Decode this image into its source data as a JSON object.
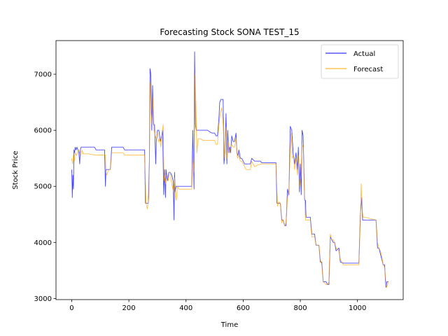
{
  "chart_data": {
    "type": "line",
    "title": "Forecasting Stock SONA TEST_15",
    "xlabel": "Time",
    "ylabel": "Stock Price",
    "xlim": [
      -55,
      1160
    ],
    "ylim": [
      2980,
      7600
    ],
    "xticks": [
      0,
      200,
      400,
      600,
      800,
      1000
    ],
    "yticks": [
      3000,
      4000,
      5000,
      6000,
      7000
    ],
    "grid": false,
    "legend_position": "top-right",
    "series": [
      {
        "name": "Actual",
        "color": "#0000ff",
        "points": [
          [
            0,
            5300
          ],
          [
            2,
            4800
          ],
          [
            4,
            5200
          ],
          [
            6,
            4950
          ],
          [
            8,
            5650
          ],
          [
            10,
            5600
          ],
          [
            12,
            5700
          ],
          [
            15,
            5650
          ],
          [
            18,
            5700
          ],
          [
            22,
            5650
          ],
          [
            25,
            5600
          ],
          [
            28,
            5400
          ],
          [
            30,
            5650
          ],
          [
            33,
            5700
          ],
          [
            60,
            5700
          ],
          [
            80,
            5700
          ],
          [
            85,
            5650
          ],
          [
            115,
            5650
          ],
          [
            118,
            5000
          ],
          [
            120,
            5300
          ],
          [
            130,
            5300
          ],
          [
            135,
            5300
          ],
          [
            140,
            5700
          ],
          [
            180,
            5700
          ],
          [
            185,
            5650
          ],
          [
            255,
            5650
          ],
          [
            258,
            4700
          ],
          [
            268,
            4700
          ],
          [
            272,
            5500
          ],
          [
            274,
            7100
          ],
          [
            277,
            7000
          ],
          [
            280,
            6000
          ],
          [
            283,
            6800
          ],
          [
            286,
            6100
          ],
          [
            290,
            6100
          ],
          [
            294,
            5400
          ],
          [
            296,
            5800
          ],
          [
            300,
            6000
          ],
          [
            305,
            6000
          ],
          [
            310,
            5800
          ],
          [
            315,
            5900
          ],
          [
            318,
            6000
          ],
          [
            322,
            4850
          ],
          [
            325,
            5300
          ],
          [
            328,
            4800
          ],
          [
            330,
            5300
          ],
          [
            335,
            5100
          ],
          [
            340,
            5250
          ],
          [
            345,
            5250
          ],
          [
            350,
            5200
          ],
          [
            355,
            5100
          ],
          [
            358,
            4400
          ],
          [
            360,
            5250
          ],
          [
            362,
            4900
          ],
          [
            365,
            5000
          ],
          [
            370,
            5000
          ],
          [
            375,
            5000
          ],
          [
            420,
            5000
          ],
          [
            424,
            6000
          ],
          [
            428,
            4950
          ],
          [
            430,
            7400
          ],
          [
            433,
            6100
          ],
          [
            436,
            6000
          ],
          [
            470,
            6000
          ],
          [
            475,
            6000
          ],
          [
            490,
            5950
          ],
          [
            500,
            5950
          ],
          [
            505,
            5900
          ],
          [
            510,
            5900
          ],
          [
            515,
            6200
          ],
          [
            518,
            6500
          ],
          [
            522,
            6550
          ],
          [
            530,
            6550
          ],
          [
            533,
            5400
          ],
          [
            536,
            5600
          ],
          [
            540,
            6300
          ],
          [
            543,
            5400
          ],
          [
            546,
            6000
          ],
          [
            550,
            5600
          ],
          [
            553,
            5700
          ],
          [
            556,
            5600
          ],
          [
            560,
            5900
          ],
          [
            565,
            5800
          ],
          [
            570,
            5800
          ],
          [
            575,
            5950
          ],
          [
            578,
            5600
          ],
          [
            582,
            5550
          ],
          [
            585,
            5650
          ],
          [
            590,
            5500
          ],
          [
            595,
            5500
          ],
          [
            600,
            5450
          ],
          [
            605,
            5400
          ],
          [
            625,
            5400
          ],
          [
            630,
            5500
          ],
          [
            640,
            5450
          ],
          [
            645,
            5450
          ],
          [
            650,
            5450
          ],
          [
            660,
            5450
          ],
          [
            665,
            5420
          ],
          [
            715,
            5420
          ],
          [
            718,
            4700
          ],
          [
            725,
            4700
          ],
          [
            730,
            4700
          ],
          [
            735,
            4400
          ],
          [
            740,
            4400
          ],
          [
            745,
            4300
          ],
          [
            750,
            4300
          ],
          [
            755,
            4950
          ],
          [
            760,
            4850
          ],
          [
            765,
            6070
          ],
          [
            770,
            6000
          ],
          [
            775,
            5600
          ],
          [
            780,
            5400
          ],
          [
            785,
            5600
          ],
          [
            790,
            5300
          ],
          [
            793,
            5700
          ],
          [
            797,
            4900
          ],
          [
            800,
            5400
          ],
          [
            803,
            4850
          ],
          [
            806,
            6000
          ],
          [
            810,
            5900
          ],
          [
            815,
            4750
          ],
          [
            818,
            4750
          ],
          [
            820,
            4450
          ],
          [
            835,
            4450
          ],
          [
            840,
            4150
          ],
          [
            850,
            4150
          ],
          [
            855,
            3950
          ],
          [
            865,
            3950
          ],
          [
            870,
            3650
          ],
          [
            875,
            3650
          ],
          [
            880,
            3300
          ],
          [
            890,
            3300
          ],
          [
            895,
            3250
          ],
          [
            900,
            3250
          ],
          [
            905,
            4100
          ],
          [
            915,
            4000
          ],
          [
            920,
            4000
          ],
          [
            925,
            3850
          ],
          [
            935,
            3900
          ],
          [
            940,
            3650
          ],
          [
            950,
            3630
          ],
          [
            1005,
            3630
          ],
          [
            1010,
            4500
          ],
          [
            1015,
            4800
          ],
          [
            1018,
            4400
          ],
          [
            1065,
            4400
          ],
          [
            1070,
            3900
          ],
          [
            1075,
            3900
          ],
          [
            1080,
            3800
          ],
          [
            1085,
            3700
          ],
          [
            1090,
            3600
          ],
          [
            1095,
            3600
          ],
          [
            1098,
            3300
          ],
          [
            1100,
            3200
          ],
          [
            1103,
            3300
          ],
          [
            1108,
            3300
          ]
        ]
      },
      {
        "name": "Forecast",
        "color": "#ffa500",
        "points": [
          [
            0,
            5500
          ],
          [
            3,
            5400
          ],
          [
            6,
            5550
          ],
          [
            9,
            5450
          ],
          [
            12,
            5600
          ],
          [
            16,
            5550
          ],
          [
            20,
            5600
          ],
          [
            24,
            5650
          ],
          [
            28,
            5580
          ],
          [
            32,
            5550
          ],
          [
            36,
            5650
          ],
          [
            40,
            5580
          ],
          [
            60,
            5580
          ],
          [
            80,
            5560
          ],
          [
            118,
            5560
          ],
          [
            120,
            5250
          ],
          [
            122,
            5200
          ],
          [
            130,
            5300
          ],
          [
            135,
            5300
          ],
          [
            140,
            5600
          ],
          [
            180,
            5600
          ],
          [
            185,
            5560
          ],
          [
            255,
            5560
          ],
          [
            260,
            4700
          ],
          [
            265,
            4600
          ],
          [
            270,
            4800
          ],
          [
            272,
            5500
          ],
          [
            275,
            6850
          ],
          [
            278,
            6300
          ],
          [
            281,
            6100
          ],
          [
            285,
            6600
          ],
          [
            288,
            6000
          ],
          [
            292,
            5900
          ],
          [
            296,
            5850
          ],
          [
            300,
            5950
          ],
          [
            304,
            5800
          ],
          [
            308,
            5850
          ],
          [
            312,
            5700
          ],
          [
            316,
            5950
          ],
          [
            320,
            6100
          ],
          [
            323,
            5100
          ],
          [
            326,
            5200
          ],
          [
            329,
            5050
          ],
          [
            332,
            5200
          ],
          [
            335,
            5200
          ],
          [
            338,
            5100
          ],
          [
            341,
            5250
          ],
          [
            345,
            5250
          ],
          [
            348,
            5100
          ],
          [
            352,
            5000
          ],
          [
            356,
            4900
          ],
          [
            360,
            5150
          ],
          [
            363,
            4800
          ],
          [
            366,
            4750
          ],
          [
            370,
            5000
          ],
          [
            375,
            4950
          ],
          [
            420,
            4950
          ],
          [
            424,
            5550
          ],
          [
            428,
            5250
          ],
          [
            432,
            7000
          ],
          [
            435,
            6400
          ],
          [
            438,
            5600
          ],
          [
            442,
            5850
          ],
          [
            450,
            5850
          ],
          [
            460,
            5820
          ],
          [
            470,
            5820
          ],
          [
            500,
            5820
          ],
          [
            505,
            5750
          ],
          [
            510,
            5750
          ],
          [
            515,
            6100
          ],
          [
            520,
            6300
          ],
          [
            525,
            6400
          ],
          [
            530,
            6100
          ],
          [
            535,
            5500
          ],
          [
            540,
            6050
          ],
          [
            544,
            5500
          ],
          [
            548,
            5800
          ],
          [
            552,
            5600
          ],
          [
            556,
            5700
          ],
          [
            560,
            5750
          ],
          [
            565,
            5700
          ],
          [
            570,
            5700
          ],
          [
            575,
            5850
          ],
          [
            580,
            5500
          ],
          [
            585,
            5550
          ],
          [
            590,
            5450
          ],
          [
            595,
            5450
          ],
          [
            600,
            5400
          ],
          [
            605,
            5350
          ],
          [
            610,
            5300
          ],
          [
            625,
            5300
          ],
          [
            630,
            5450
          ],
          [
            640,
            5350
          ],
          [
            650,
            5380
          ],
          [
            665,
            5400
          ],
          [
            715,
            5400
          ],
          [
            720,
            4650
          ],
          [
            725,
            4720
          ],
          [
            730,
            4700
          ],
          [
            735,
            4350
          ],
          [
            740,
            4400
          ],
          [
            745,
            4300
          ],
          [
            750,
            4350
          ],
          [
            755,
            4800
          ],
          [
            760,
            4900
          ],
          [
            765,
            5650
          ],
          [
            768,
            5950
          ],
          [
            772,
            5500
          ],
          [
            776,
            5550
          ],
          [
            780,
            5300
          ],
          [
            785,
            5500
          ],
          [
            790,
            5200
          ],
          [
            794,
            5550
          ],
          [
            798,
            5000
          ],
          [
            802,
            5200
          ],
          [
            806,
            5750
          ],
          [
            810,
            5700
          ],
          [
            814,
            4950
          ],
          [
            818,
            4400
          ],
          [
            835,
            4400
          ],
          [
            840,
            4100
          ],
          [
            850,
            4100
          ],
          [
            855,
            3950
          ],
          [
            865,
            3950
          ],
          [
            870,
            3700
          ],
          [
            875,
            3600
          ],
          [
            880,
            3300
          ],
          [
            890,
            3250
          ],
          [
            895,
            3250
          ],
          [
            900,
            3300
          ],
          [
            905,
            4150
          ],
          [
            910,
            4050
          ],
          [
            915,
            4050
          ],
          [
            920,
            4000
          ],
          [
            925,
            3900
          ],
          [
            935,
            3850
          ],
          [
            940,
            3700
          ],
          [
            950,
            3600
          ],
          [
            1005,
            3600
          ],
          [
            1010,
            4400
          ],
          [
            1013,
            5050
          ],
          [
            1016,
            4600
          ],
          [
            1020,
            4450
          ],
          [
            1025,
            4450
          ],
          [
            1065,
            4400
          ],
          [
            1070,
            4000
          ],
          [
            1075,
            3900
          ],
          [
            1080,
            3850
          ],
          [
            1085,
            3750
          ],
          [
            1090,
            3600
          ],
          [
            1095,
            3550
          ],
          [
            1100,
            3250
          ],
          [
            1103,
            3200
          ],
          [
            1108,
            3300
          ]
        ]
      }
    ]
  }
}
